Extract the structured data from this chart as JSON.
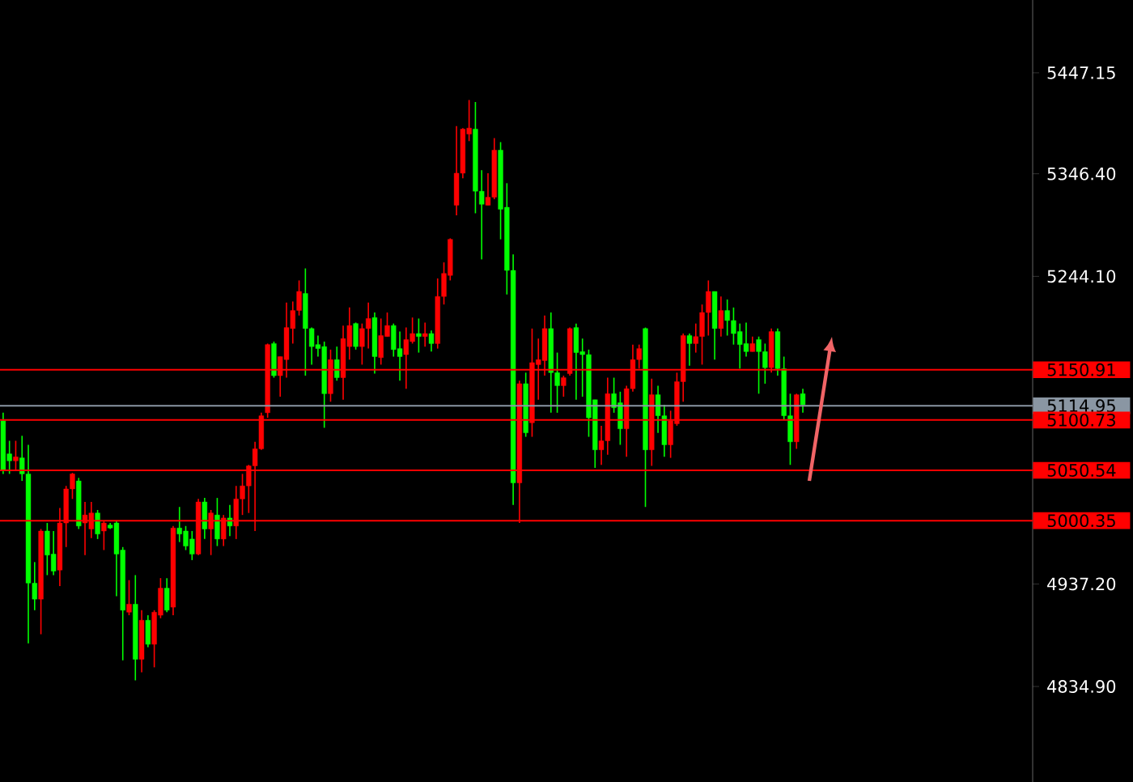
{
  "chart_data": {
    "type": "candlestick",
    "categories": [
      null,
      null,
      null,
      null,
      null,
      null,
      null,
      null,
      null,
      null,
      null,
      null,
      null,
      null,
      null,
      null,
      null,
      null,
      null,
      null,
      null,
      null,
      null,
      null,
      null,
      null,
      null,
      null,
      null,
      null,
      null,
      null,
      null,
      null,
      null,
      null,
      null,
      null,
      null,
      null,
      null,
      null,
      null,
      null,
      null,
      null,
      null,
      null,
      null,
      null,
      null,
      null,
      null,
      null,
      null,
      null,
      null,
      null,
      null,
      null,
      null,
      null,
      null,
      null,
      null,
      null,
      null,
      null,
      null,
      null,
      null,
      null,
      null,
      null,
      null,
      null,
      null,
      null,
      null,
      null,
      null,
      null,
      null,
      null,
      null,
      null,
      null,
      null,
      null,
      null,
      null,
      null,
      null,
      null,
      null,
      null,
      null,
      null,
      null,
      null,
      null,
      null,
      null,
      null,
      null,
      null,
      null,
      null,
      null,
      null,
      null,
      null,
      null,
      null,
      null,
      null,
      null,
      null,
      null,
      null,
      null,
      null,
      null,
      null,
      null,
      null,
      null,
      null,
      null,
      null,
      null,
      null,
      null,
      null,
      null,
      null,
      null,
      null,
      null,
      null,
      null,
      null,
      null,
      null,
      null,
      null,
      null,
      null,
      null,
      null,
      null,
      null,
      null,
      null,
      null,
      null,
      null,
      null,
      null,
      null,
      null,
      null,
      null,
      null
    ],
    "ohlc": [
      [
        5100,
        5108,
        5047,
        5051
      ],
      [
        5067,
        5080,
        5047,
        5060
      ],
      [
        5060,
        5080,
        5051,
        5064
      ],
      [
        5063,
        5085,
        5040,
        5047
      ],
      [
        5047,
        5076,
        4878,
        4938
      ],
      [
        4938,
        4959,
        4911,
        4922
      ],
      [
        4922,
        4992,
        4887,
        4990
      ],
      [
        4990,
        4998,
        4946,
        4966
      ],
      [
        4967,
        4990,
        4946,
        4950
      ],
      [
        4951,
        5013,
        4935,
        4998
      ],
      [
        4998,
        5035,
        4974,
        5032
      ],
      [
        5032,
        5048,
        5022,
        5047
      ],
      [
        5040,
        5043,
        4992,
        4995
      ],
      [
        4998,
        5019,
        4966,
        5006
      ],
      [
        4992,
        5019,
        4983,
        5008
      ],
      [
        5008,
        5011,
        4982,
        4987
      ],
      [
        4990,
        5000,
        4971,
        4998
      ],
      [
        4996,
        4998,
        4992,
        4993
      ],
      [
        4998,
        5000,
        4925,
        4967
      ],
      [
        4971,
        4974,
        4861,
        4911
      ],
      [
        4909,
        4941,
        4906,
        4917
      ],
      [
        4917,
        4946,
        4841,
        4862
      ],
      [
        4862,
        4911,
        4849,
        4901
      ],
      [
        4901,
        4906,
        4874,
        4877
      ],
      [
        4877,
        4911,
        4854,
        4909
      ],
      [
        4906,
        4943,
        4903,
        4933
      ],
      [
        4933,
        4943,
        4909,
        4911
      ],
      [
        4914,
        4995,
        4906,
        4993
      ],
      [
        4993,
        5014,
        4979,
        4987
      ],
      [
        4990,
        4995,
        4971,
        4975
      ],
      [
        4982,
        4990,
        4961,
        4967
      ],
      [
        4967,
        5022,
        4966,
        5019
      ],
      [
        5019,
        5023,
        4982,
        4992
      ],
      [
        4992,
        5011,
        4966,
        5008
      ],
      [
        5006,
        5023,
        4975,
        4982
      ],
      [
        4982,
        5006,
        4975,
        5003
      ],
      [
        5003,
        5016,
        4985,
        4995
      ],
      [
        4995,
        5035,
        4982,
        5022
      ],
      [
        5022,
        5047,
        5006,
        5035
      ],
      [
        5035,
        5056,
        5008,
        5055
      ],
      [
        5055,
        5079,
        4990,
        5072
      ],
      [
        5072,
        5108,
        5071,
        5105
      ],
      [
        5108,
        5177,
        5103,
        5176
      ],
      [
        5177,
        5179,
        5143,
        5145
      ],
      [
        5145,
        5164,
        5124,
        5164
      ],
      [
        5161,
        5218,
        5143,
        5193
      ],
      [
        5192,
        5219,
        5177,
        5210
      ],
      [
        5210,
        5240,
        5205,
        5229
      ],
      [
        5227,
        5252,
        5145,
        5192
      ],
      [
        5192,
        5193,
        5156,
        5174
      ],
      [
        5176,
        5185,
        5164,
        5172
      ],
      [
        5174,
        5179,
        5093,
        5127
      ],
      [
        5127,
        5171,
        5119,
        5161
      ],
      [
        5161,
        5174,
        5140,
        5143
      ],
      [
        5143,
        5195,
        5121,
        5182
      ],
      [
        5174,
        5213,
        5161,
        5195
      ],
      [
        5197,
        5198,
        5171,
        5174
      ],
      [
        5174,
        5197,
        5156,
        5192
      ],
      [
        5192,
        5218,
        5172,
        5202
      ],
      [
        5203,
        5208,
        5147,
        5164
      ],
      [
        5163,
        5202,
        5156,
        5185
      ],
      [
        5184,
        5208,
        5184,
        5195
      ],
      [
        5195,
        5197,
        5164,
        5171
      ],
      [
        5172,
        5189,
        5140,
        5164
      ],
      [
        5166,
        5193,
        5132,
        5181
      ],
      [
        5179,
        5203,
        5177,
        5187
      ],
      [
        5187,
        5202,
        5168,
        5184
      ],
      [
        5184,
        5198,
        5174,
        5187
      ],
      [
        5187,
        5190,
        5169,
        5177
      ],
      [
        5177,
        5242,
        5172,
        5224
      ],
      [
        5224,
        5258,
        5216,
        5247
      ],
      [
        5245,
        5282,
        5240,
        5281
      ],
      [
        5315,
        5394,
        5305,
        5347
      ],
      [
        5347,
        5392,
        5342,
        5391
      ],
      [
        5386,
        5420,
        5379,
        5392
      ],
      [
        5391,
        5418,
        5307,
        5329
      ],
      [
        5329,
        5350,
        5261,
        5316
      ],
      [
        5315,
        5347,
        5315,
        5323
      ],
      [
        5323,
        5382,
        5321,
        5370
      ],
      [
        5370,
        5378,
        5281,
        5311
      ],
      [
        5313,
        5337,
        5226,
        5250
      ],
      [
        5250,
        5266,
        5016,
        5038
      ],
      [
        5038,
        5140,
        4998,
        5137
      ],
      [
        5137,
        5148,
        5084,
        5088
      ],
      [
        5098,
        5192,
        5084,
        5158
      ],
      [
        5156,
        5182,
        5121,
        5161
      ],
      [
        5160,
        5205,
        5145,
        5192
      ],
      [
        5192,
        5208,
        5108,
        5148
      ],
      [
        5148,
        5168,
        5108,
        5135
      ],
      [
        5135,
        5145,
        5124,
        5143
      ],
      [
        5147,
        5193,
        5145,
        5192
      ],
      [
        5193,
        5197,
        5121,
        5168
      ],
      [
        5169,
        5182,
        5124,
        5166
      ],
      [
        5166,
        5171,
        5084,
        5103
      ],
      [
        5121,
        5121,
        5053,
        5071
      ],
      [
        5071,
        5095,
        5056,
        5080
      ],
      [
        5080,
        5143,
        5066,
        5127
      ],
      [
        5127,
        5143,
        5108,
        5113
      ],
      [
        5118,
        5129,
        5076,
        5092
      ],
      [
        5092,
        5135,
        5064,
        5132
      ],
      [
        5132,
        5176,
        5129,
        5161
      ],
      [
        5161,
        5176,
        5152,
        5172
      ],
      [
        5192,
        5193,
        5014,
        5071
      ],
      [
        5071,
        5142,
        5055,
        5126
      ],
      [
        5126,
        5135,
        5088,
        5105
      ],
      [
        5105,
        5116,
        5064,
        5076
      ],
      [
        5076,
        5110,
        5063,
        5100
      ],
      [
        5097,
        5148,
        5095,
        5139
      ],
      [
        5139,
        5187,
        5119,
        5185
      ],
      [
        5185,
        5187,
        5155,
        5177
      ],
      [
        5177,
        5197,
        5168,
        5184
      ],
      [
        5184,
        5216,
        5156,
        5208
      ],
      [
        5208,
        5240,
        5185,
        5229
      ],
      [
        5229,
        5229,
        5161,
        5192
      ],
      [
        5192,
        5224,
        5184,
        5210
      ],
      [
        5210,
        5221,
        5185,
        5200
      ],
      [
        5200,
        5213,
        5176,
        5187
      ],
      [
        5189,
        5197,
        5152,
        5176
      ],
      [
        5177,
        5198,
        5164,
        5169
      ],
      [
        5169,
        5184,
        5169,
        5177
      ],
      [
        5181,
        5184,
        5127,
        5169
      ],
      [
        5169,
        5177,
        5137,
        5153
      ],
      [
        5153,
        5192,
        5148,
        5189
      ],
      [
        5189,
        5192,
        5145,
        5152
      ],
      [
        5152,
        5164,
        5101,
        5105
      ],
      [
        5105,
        5127,
        5056,
        5079
      ],
      [
        5079,
        5127,
        5072,
        5126
      ],
      [
        5127,
        5132,
        5108,
        5116
      ],
      null,
      null,
      null,
      null,
      null,
      null,
      null,
      null,
      null,
      null,
      null,
      null,
      null,
      null,
      null,
      null,
      null,
      null,
      null,
      null,
      null,
      null,
      null,
      null,
      null,
      null,
      null,
      null,
      null,
      null,
      null,
      null,
      null,
      null,
      null,
      null
    ],
    "colors": [
      "#00ff00",
      "#00ff00",
      "#ff0000",
      "#00ff00",
      "#00ff00",
      "#00ff00",
      "#ff0000",
      "#00ff00",
      "#00ff00",
      "#ff0000",
      "#ff0000",
      "#ff0000",
      "#00ff00",
      "#ff0000",
      "#ff0000",
      "#00ff00",
      "#ff0000",
      "#00ff00",
      "#00ff00",
      "#00ff00",
      "#ff0000",
      "#00ff00",
      "#ff0000",
      "#00ff00",
      "#ff0000",
      "#ff0000",
      "#00ff00",
      "#ff0000",
      "#00ff00",
      "#00ff00",
      "#00ff00",
      "#ff0000",
      "#00ff00",
      "#ff0000",
      "#00ff00",
      "#ff0000",
      "#00ff00",
      "#ff0000",
      "#ff0000",
      "#ff0000",
      "#ff0000",
      "#ff0000",
      "#ff0000",
      "#00ff00",
      "#ff0000",
      "#ff0000",
      "#ff0000",
      "#ff0000",
      "#00ff00",
      "#00ff00",
      "#00ff00",
      "#00ff00",
      "#ff0000",
      "#00ff00",
      "#ff0000",
      "#ff0000",
      "#00ff00",
      "#ff0000",
      "#ff0000",
      "#00ff00",
      "#ff0000",
      "#ff0000",
      "#00ff00",
      "#00ff00",
      "#ff0000",
      "#ff0000",
      "#00ff00",
      "#ff0000",
      "#00ff00",
      "#ff0000",
      "#ff0000",
      "#ff0000",
      "#ff0000",
      "#ff0000",
      "#ff0000",
      "#00ff00",
      "#00ff00",
      "#ff0000",
      "#ff0000",
      "#00ff00",
      "#00ff00",
      "#00ff00",
      "#ff0000",
      "#00ff00",
      "#ff0000",
      "#ff0000",
      "#ff0000",
      "#00ff00",
      "#00ff00",
      "#ff0000",
      "#ff0000",
      "#00ff00",
      "#00ff00",
      "#00ff00",
      "#00ff00",
      "#ff0000",
      "#ff0000",
      "#00ff00",
      "#00ff00",
      "#ff0000",
      "#ff0000",
      "#ff0000",
      "#00ff00",
      "#ff0000",
      "#00ff00",
      "#00ff00",
      "#ff0000",
      "#ff0000",
      "#ff0000",
      "#00ff00",
      "#ff0000",
      "#ff0000",
      "#ff0000",
      "#00ff00",
      "#ff0000",
      "#00ff00",
      "#00ff00",
      "#00ff00",
      "#00ff00",
      "#ff0000",
      "#00ff00",
      "#00ff00",
      "#ff0000",
      "#00ff00",
      "#00ff00",
      "#00ff00",
      "#ff0000",
      "#00ff00",
      null,
      null,
      null,
      null,
      null,
      null,
      null,
      null,
      null,
      null,
      null,
      null,
      null,
      null,
      null,
      null,
      null,
      null,
      null,
      null,
      null,
      null,
      null,
      null,
      null,
      null,
      null,
      null,
      null,
      null,
      null,
      null,
      null,
      null,
      null,
      null
    ],
    "ylim": [
      4739.6,
      5519.8
    ],
    "yticks": [
      {
        "value": 4834.9,
        "label": "4834.90"
      },
      {
        "value": 4937.2,
        "label": "4937.20"
      },
      {
        "value": 5244.1,
        "label": "5244.10"
      },
      {
        "value": 5346.4,
        "label": "5346.40"
      },
      5447.15
    ],
    "tick_labels": "y",
    "ref_lines": [
      {
        "axis": "y",
        "value": 5114.95,
        "label": "5114.95",
        "color": "#8a96a3"
      },
      {
        "axis": "y",
        "value": 5150.91,
        "label": "5150.91",
        "color": "#ff0000"
      },
      {
        "axis": "y",
        "value": 5100.73,
        "label": "5100.73",
        "color": "#ff0000"
      },
      {
        "axis": "y",
        "value": 5050.54,
        "label": "5050.54",
        "color": "#ff0000"
      },
      {
        "axis": "y",
        "value": 5000.35,
        "label": "5000.35",
        "color": "#ff0000"
      }
    ]
  }
}
